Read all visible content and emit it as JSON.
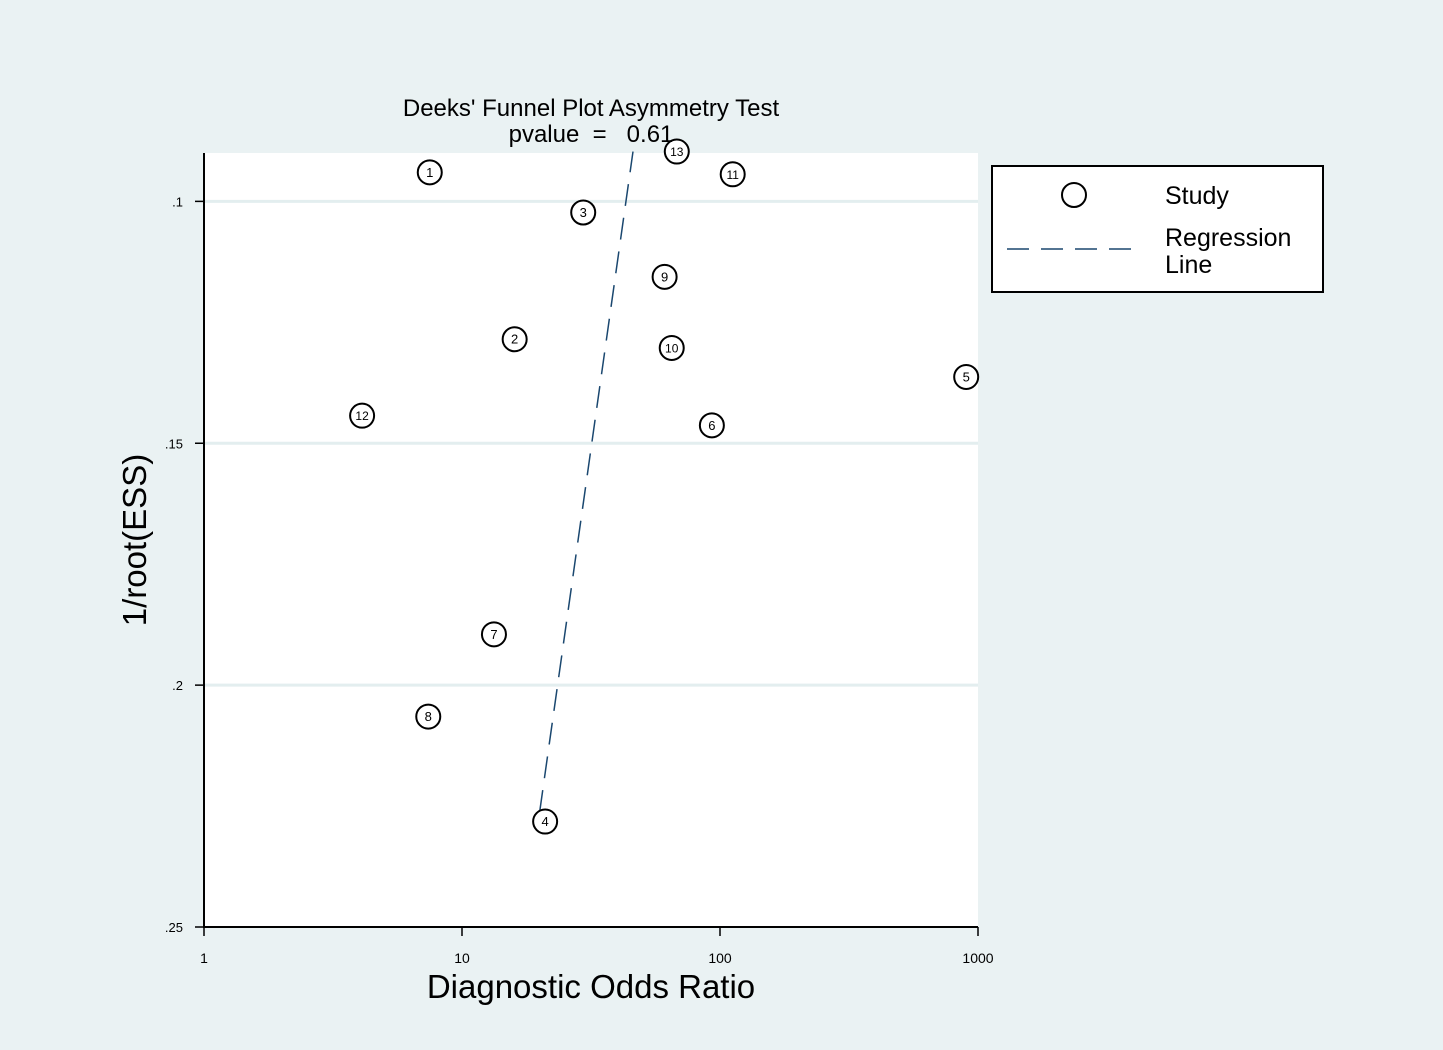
{
  "chart_data": {
    "type": "scatter",
    "title": "Deeks' Funnel Plot Asymmetry Test",
    "subtitle": "pvalue  =   0.61",
    "xlabel": "Diagnostic Odds Ratio",
    "ylabel": "1/root(ESS)",
    "x_scale": "log",
    "xlim": [
      1,
      1000
    ],
    "ylim": [
      0.25,
      0.09
    ],
    "y_reversed": true,
    "x_ticks": [
      1,
      10,
      100,
      1000
    ],
    "x_tick_labels": [
      "1",
      "10",
      "100",
      "1000"
    ],
    "y_ticks": [
      0.1,
      0.15,
      0.2,
      0.25
    ],
    "y_tick_labels": [
      ".1",
      ".15",
      ".2",
      ".25"
    ],
    "y_grid": true,
    "legend_position": "right",
    "legend": [
      {
        "label": "Study",
        "marker": "circle"
      },
      {
        "label": "Regression Line",
        "line1": "Regression",
        "line2": "Line",
        "marker": "dashed-line"
      }
    ],
    "series": [
      {
        "name": "Study",
        "points": [
          {
            "label": "1",
            "x": 7.5,
            "y": 0.094
          },
          {
            "label": "2",
            "x": 16,
            "y": 0.1285
          },
          {
            "label": "3",
            "x": 29.5,
            "y": 0.1023
          },
          {
            "label": "4",
            "x": 21,
            "y": 0.2282
          },
          {
            "label": "5",
            "x": 900,
            "y": 0.1363
          },
          {
            "label": "6",
            "x": 93,
            "y": 0.1463
          },
          {
            "label": "7",
            "x": 13.3,
            "y": 0.1895
          },
          {
            "label": "8",
            "x": 7.4,
            "y": 0.2065
          },
          {
            "label": "9",
            "x": 61,
            "y": 0.1156
          },
          {
            "label": "10",
            "x": 65,
            "y": 0.1303
          },
          {
            "label": "11",
            "x": 112,
            "y": 0.0944
          },
          {
            "label": "12",
            "x": 4.1,
            "y": 0.1443
          },
          {
            "label": "13",
            "x": 68,
            "y": 0.0897
          }
        ]
      },
      {
        "name": "Regression Line",
        "points": [
          {
            "x": 20,
            "y": 0.2262
          },
          {
            "x": 46,
            "y": 0.0897
          }
        ]
      }
    ],
    "colors": {
      "background": "#eaf2f3",
      "plot_area": "#ffffff",
      "gridline": "#e3eeef",
      "regression_line": "#1a476f",
      "marker_stroke": "#000000"
    }
  }
}
